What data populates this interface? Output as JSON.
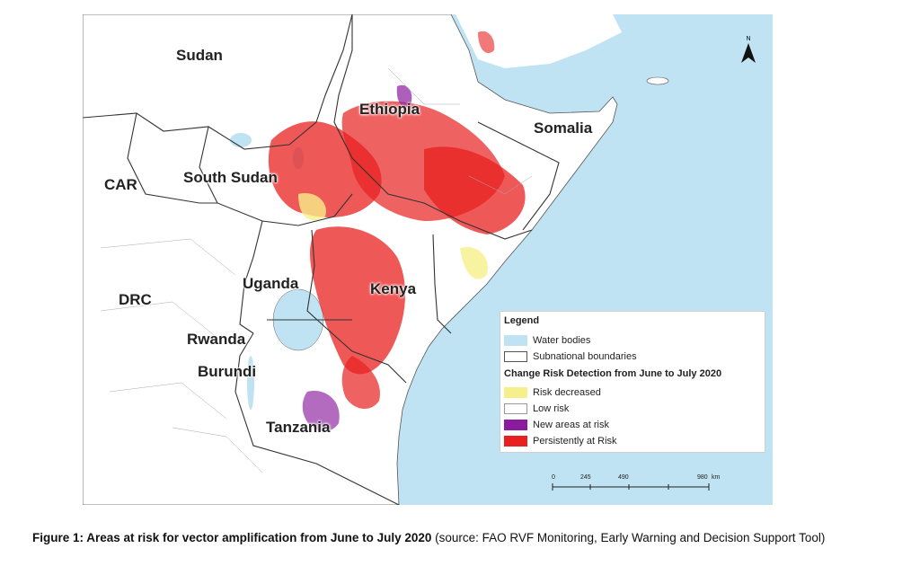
{
  "map": {
    "countries": [
      "Sudan",
      "Ethiopia",
      "Somalia",
      "South Sudan",
      "CAR",
      "Uganda",
      "Kenya",
      "DRC",
      "Rwanda",
      "Burundi",
      "Tanzania"
    ],
    "colors": {
      "sea": "#bfe3f3",
      "land": "#ffffff",
      "border": "#333333",
      "risk_decreased": "#f6f08a",
      "low_risk": "#ffffff",
      "new_areas_at_risk": "#8a1b9e",
      "persistently_at_risk": "#e8201f"
    }
  },
  "legend": {
    "title": "Legend",
    "water_bodies": "Water bodies",
    "subnational_boundaries": "Subnational boundaries",
    "subtitle": "Change Risk Detection from June to July 2020",
    "risk_decreased": "Risk decreased",
    "low_risk": "Low risk",
    "new_areas_at_risk": "New areas at risk",
    "persistently_at_risk": "Persistently at Risk"
  },
  "north_arrow": {
    "label": "N"
  },
  "scale_bar": {
    "ticks": [
      "0",
      "245",
      "490",
      "980"
    ],
    "unit": "km"
  },
  "caption": {
    "bold": "Figure 1: Areas at risk for vector amplification from June to July 2020",
    "normal": " (source: FAO RVF Monitoring, Early Warning and Decision Support Tool)"
  }
}
